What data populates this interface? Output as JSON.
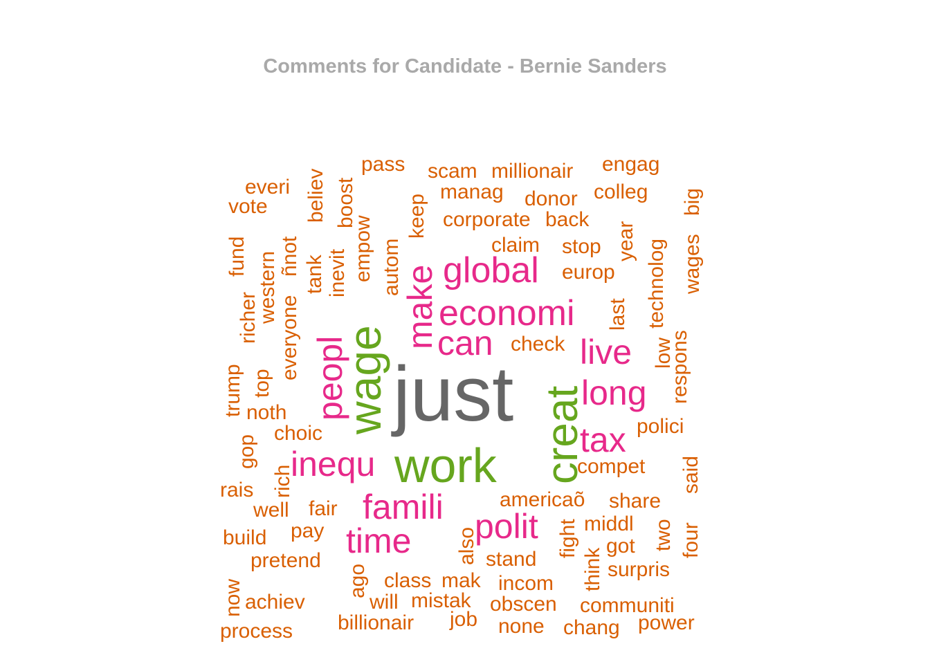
{
  "chart_data": {
    "type": "wordcloud",
    "title": "Comments for Candidate - Bernie Sanders",
    "color_groups": {
      "top": "#666666",
      "high": "#66a61e",
      "mid": "#e7298a",
      "low": "#d95f02"
    },
    "words": [
      {
        "text": "just",
        "group": "top"
      },
      {
        "text": "wage",
        "group": "high"
      },
      {
        "text": "work",
        "group": "high"
      },
      {
        "text": "creat",
        "group": "high"
      },
      {
        "text": "global",
        "group": "mid"
      },
      {
        "text": "economi",
        "group": "mid"
      },
      {
        "text": "make",
        "group": "mid"
      },
      {
        "text": "peopl",
        "group": "mid"
      },
      {
        "text": "can",
        "group": "mid"
      },
      {
        "text": "live",
        "group": "mid"
      },
      {
        "text": "long",
        "group": "mid"
      },
      {
        "text": "tax",
        "group": "mid"
      },
      {
        "text": "inequ",
        "group": "mid"
      },
      {
        "text": "famili",
        "group": "mid"
      },
      {
        "text": "polit",
        "group": "mid"
      },
      {
        "text": "time",
        "group": "mid"
      },
      {
        "text": "pass",
        "group": "low"
      },
      {
        "text": "scam",
        "group": "low"
      },
      {
        "text": "millionair",
        "group": "low"
      },
      {
        "text": "engag",
        "group": "low"
      },
      {
        "text": "everi",
        "group": "low"
      },
      {
        "text": "vote",
        "group": "low"
      },
      {
        "text": "believ",
        "group": "low"
      },
      {
        "text": "boost",
        "group": "low"
      },
      {
        "text": "manag",
        "group": "low"
      },
      {
        "text": "donor",
        "group": "low"
      },
      {
        "text": "colleg",
        "group": "low"
      },
      {
        "text": "corporate",
        "group": "low"
      },
      {
        "text": "back",
        "group": "low"
      },
      {
        "text": "keep",
        "group": "low"
      },
      {
        "text": "empow",
        "group": "low"
      },
      {
        "text": "inevit",
        "group": "low"
      },
      {
        "text": "fund",
        "group": "low"
      },
      {
        "text": "western",
        "group": "low"
      },
      {
        "text": "everyone",
        "group": "low"
      },
      {
        "text": "ñnot",
        "group": "low"
      },
      {
        "text": "tank",
        "group": "low"
      },
      {
        "text": "autom",
        "group": "low"
      },
      {
        "text": "claim",
        "group": "low"
      },
      {
        "text": "stop",
        "group": "low"
      },
      {
        "text": "year",
        "group": "low"
      },
      {
        "text": "technolog",
        "group": "low"
      },
      {
        "text": "wages",
        "group": "low"
      },
      {
        "text": "big",
        "group": "low"
      },
      {
        "text": "europ",
        "group": "low"
      },
      {
        "text": "richer",
        "group": "low"
      },
      {
        "text": "last",
        "group": "low"
      },
      {
        "text": "check",
        "group": "low"
      },
      {
        "text": "low",
        "group": "low"
      },
      {
        "text": "respons",
        "group": "low"
      },
      {
        "text": "trump",
        "group": "low"
      },
      {
        "text": "top",
        "group": "low"
      },
      {
        "text": "noth",
        "group": "low"
      },
      {
        "text": "choic",
        "group": "low"
      },
      {
        "text": "polici",
        "group": "low"
      },
      {
        "text": "gop",
        "group": "low"
      },
      {
        "text": "rich",
        "group": "low"
      },
      {
        "text": "compet",
        "group": "low"
      },
      {
        "text": "said",
        "group": "low"
      },
      {
        "text": "rais",
        "group": "low"
      },
      {
        "text": "well",
        "group": "low"
      },
      {
        "text": "fair",
        "group": "low"
      },
      {
        "text": "americaõ",
        "group": "low"
      },
      {
        "text": "share",
        "group": "low"
      },
      {
        "text": "build",
        "group": "low"
      },
      {
        "text": "pay",
        "group": "low"
      },
      {
        "text": "middl",
        "group": "low"
      },
      {
        "text": "two",
        "group": "low"
      },
      {
        "text": "four",
        "group": "low"
      },
      {
        "text": "fight",
        "group": "low"
      },
      {
        "text": "also",
        "group": "low"
      },
      {
        "text": "got",
        "group": "low"
      },
      {
        "text": "pretend",
        "group": "low"
      },
      {
        "text": "stand",
        "group": "low"
      },
      {
        "text": "think",
        "group": "low"
      },
      {
        "text": "surpris",
        "group": "low"
      },
      {
        "text": "now",
        "group": "low"
      },
      {
        "text": "ago",
        "group": "low"
      },
      {
        "text": "class",
        "group": "low"
      },
      {
        "text": "mak",
        "group": "low"
      },
      {
        "text": "incom",
        "group": "low"
      },
      {
        "text": "achiev",
        "group": "low"
      },
      {
        "text": "will",
        "group": "low"
      },
      {
        "text": "mistak",
        "group": "low"
      },
      {
        "text": "obscen",
        "group": "low"
      },
      {
        "text": "communiti",
        "group": "low"
      },
      {
        "text": "process",
        "group": "low"
      },
      {
        "text": "billionair",
        "group": "low"
      },
      {
        "text": "job",
        "group": "low"
      },
      {
        "text": "none",
        "group": "low"
      },
      {
        "text": "chang",
        "group": "low"
      },
      {
        "text": "power",
        "group": "low"
      }
    ]
  }
}
